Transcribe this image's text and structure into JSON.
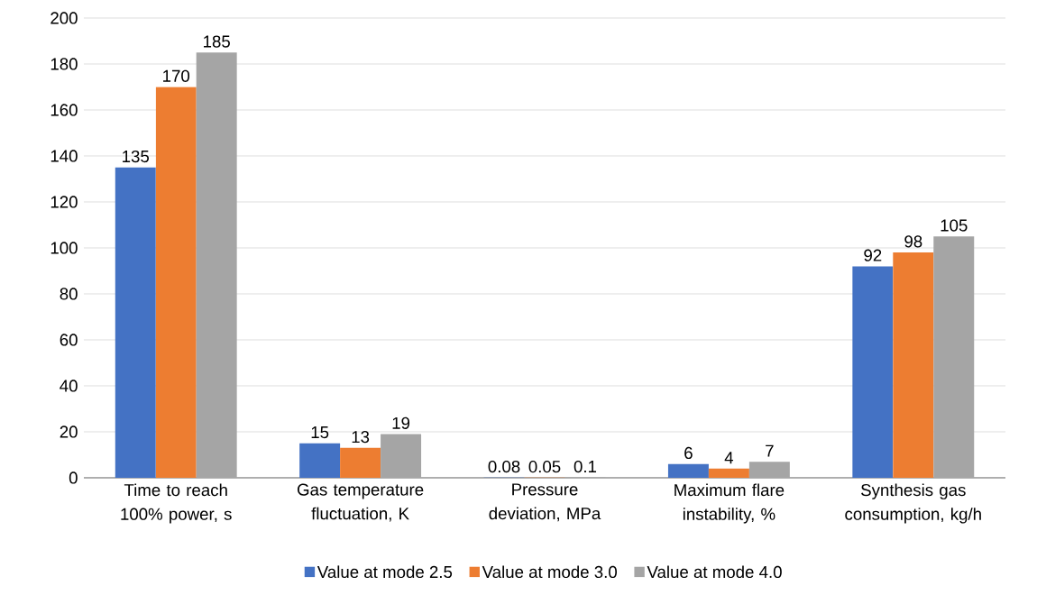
{
  "chart_data": {
    "type": "bar",
    "categories": [
      "Time to reach 100% power, s",
      "Gas temperature fluctuation, K",
      "Pressure deviation, MPa",
      "Maximum flare instability, %",
      "Synthesis gas consumption, kg/h"
    ],
    "series": [
      {
        "name": "Value at mode 2.5",
        "color": "#4472c4",
        "values": [
          135,
          15,
          0.08,
          6,
          92
        ]
      },
      {
        "name": "Value at mode 3.0",
        "color": "#ed7d31",
        "values": [
          170,
          13,
          0.05,
          4,
          98
        ]
      },
      {
        "name": "Value at mode 4.0",
        "color": "#a5a5a5",
        "values": [
          185,
          19,
          0.1,
          7,
          105
        ]
      }
    ],
    "ylim": [
      0,
      200
    ],
    "yticks": [
      0,
      20,
      40,
      60,
      80,
      100,
      120,
      140,
      160,
      180,
      200
    ],
    "grid": "y",
    "legend": "bottom",
    "data_labels": true
  }
}
